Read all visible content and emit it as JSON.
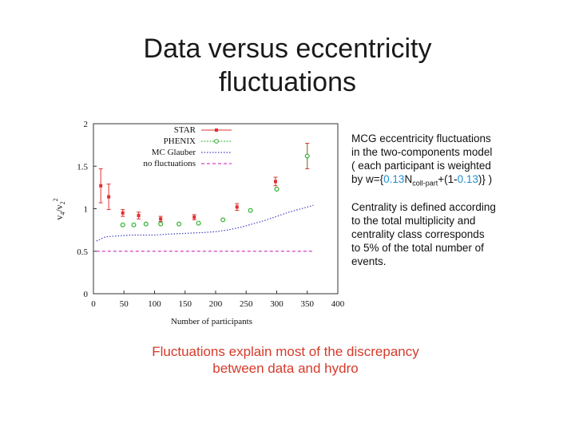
{
  "slide": {
    "title_line1": "Data versus eccentricity",
    "title_line2": "fluctuations",
    "conclusion_line1": "Fluctuations explain most of the discrepancy",
    "conclusion_line2": "between data and hydro"
  },
  "notes": {
    "p1_l1": "MCG eccentricity fluctuations",
    "p1_l2": "in the two-components model",
    "p1_l3": "( each participant is weighted",
    "p1_by": "by w={",
    "p1_coef1": "0.13",
    "p1_n": "N",
    "p1_sub": "coll-part",
    "p1_plus": "+(1-",
    "p1_coef2": "0.13",
    "p1_end": ")} )",
    "p2_l1": "Centrality is defined according",
    "p2_l2": "to the total multiplicity and",
    "p2_l3": "centrality class corresponds",
    "p2_l4": "to 5% of the total number of",
    "p2_l5": "events.",
    "highlight_color": "#1f8fd0"
  },
  "chart_data": {
    "type": "scatter",
    "xlabel": "Number of participants",
    "ylabel": "v4/v2^2",
    "ylabel_main": "v",
    "ylabel_sub1": "4",
    "ylabel_slash": "/v",
    "ylabel_sub2": "2",
    "ylabel_sup": "2",
    "xlim": [
      0,
      400
    ],
    "ylim": [
      0,
      2
    ],
    "xticks": [
      0,
      50,
      100,
      150,
      200,
      250,
      300,
      350,
      400
    ],
    "yticks": [
      0,
      0.5,
      1,
      1.5,
      2
    ],
    "xtick_labels": [
      "0",
      "50",
      "100",
      "150",
      "200",
      "250",
      "300",
      "350",
      "400"
    ],
    "ytick_labels": [
      "0",
      "0.5",
      "1",
      "1.5",
      "2"
    ],
    "legend_position": "top-left",
    "series": [
      {
        "name": "STAR",
        "color": "#e03030",
        "marker": "square",
        "points": [
          {
            "x": 12,
            "y": 1.27,
            "err": 0.2
          },
          {
            "x": 25,
            "y": 1.14,
            "err": 0.15
          },
          {
            "x": 48,
            "y": 0.95,
            "err": 0.04
          },
          {
            "x": 74,
            "y": 0.92,
            "err": 0.04
          },
          {
            "x": 110,
            "y": 0.88,
            "err": 0.03
          },
          {
            "x": 165,
            "y": 0.9,
            "err": 0.03
          },
          {
            "x": 235,
            "y": 1.02,
            "err": 0.04
          },
          {
            "x": 298,
            "y": 1.32,
            "err": 0.05
          },
          {
            "x": 350,
            "y": 1.62,
            "err": 0.15
          }
        ]
      },
      {
        "name": "PHENIX",
        "color": "#30b030",
        "marker": "circle",
        "points": [
          {
            "x": 48,
            "y": 0.81,
            "err": 0.02
          },
          {
            "x": 66,
            "y": 0.81,
            "err": 0.02
          },
          {
            "x": 86,
            "y": 0.82,
            "err": 0.02
          },
          {
            "x": 110,
            "y": 0.82,
            "err": 0.02
          },
          {
            "x": 140,
            "y": 0.82,
            "err": 0.02
          },
          {
            "x": 172,
            "y": 0.83,
            "err": 0.02
          },
          {
            "x": 212,
            "y": 0.87,
            "err": 0.02
          },
          {
            "x": 257,
            "y": 0.98,
            "err": 0.02
          },
          {
            "x": 300,
            "y": 1.23,
            "err": 0.03
          },
          {
            "x": 350,
            "y": 1.62,
            "err": 0.15
          }
        ]
      },
      {
        "name": "MC Glauber",
        "color": "#4040c0",
        "style": "dotted",
        "x": [
          5,
          20,
          40,
          60,
          80,
          100,
          120,
          150,
          180,
          200,
          220,
          240,
          260,
          280,
          300,
          320,
          340,
          360
        ],
        "y": [
          0.62,
          0.67,
          0.68,
          0.69,
          0.69,
          0.69,
          0.7,
          0.71,
          0.72,
          0.73,
          0.75,
          0.78,
          0.82,
          0.86,
          0.91,
          0.96,
          1.0,
          1.04
        ]
      },
      {
        "name": "no fluctuations",
        "color": "#d040c0",
        "style": "dashed",
        "x": [
          5,
          360
        ],
        "y": [
          0.5,
          0.5
        ]
      }
    ]
  }
}
